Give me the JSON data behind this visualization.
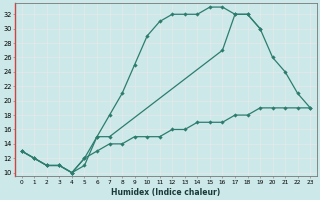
{
  "xlabel": "Humidex (Indice chaleur)",
  "bg_color": "#cce8e8",
  "line_color": "#2d7d6e",
  "grid_color": "#f0f0f0",
  "xlim": [
    -0.5,
    23.5
  ],
  "ylim": [
    9.5,
    33.5
  ],
  "xticks": [
    0,
    1,
    2,
    3,
    4,
    5,
    6,
    7,
    8,
    9,
    10,
    11,
    12,
    13,
    14,
    15,
    16,
    17,
    18,
    19,
    20,
    21,
    22,
    23
  ],
  "yticks": [
    10,
    12,
    14,
    16,
    18,
    20,
    22,
    24,
    26,
    28,
    30,
    32
  ],
  "line1_x": [
    0,
    1,
    2,
    3,
    4,
    5,
    6,
    7,
    8,
    9,
    10,
    11,
    12,
    13,
    14,
    15,
    16,
    17,
    18,
    19
  ],
  "line1_y": [
    13,
    12,
    11,
    11,
    10,
    11,
    15,
    18,
    21,
    25,
    29,
    31,
    32,
    32,
    32,
    33,
    33,
    32,
    32,
    30
  ],
  "line2_x": [
    0,
    1,
    2,
    3,
    4,
    5,
    6,
    7,
    16,
    17,
    18,
    19,
    20,
    21,
    22,
    23
  ],
  "line2_y": [
    13,
    12,
    11,
    11,
    10,
    12,
    15,
    15,
    27,
    32,
    32,
    30,
    26,
    24,
    21,
    19
  ],
  "line3_x": [
    0,
    1,
    2,
    3,
    4,
    5,
    6,
    7,
    8,
    9,
    10,
    11,
    12,
    13,
    14,
    15,
    16,
    17,
    18,
    19,
    20,
    21,
    22,
    23
  ],
  "line3_y": [
    13,
    12,
    11,
    11,
    10,
    12,
    13,
    14,
    14,
    15,
    15,
    15,
    16,
    16,
    17,
    17,
    17,
    18,
    18,
    19,
    19,
    19,
    19,
    19
  ]
}
